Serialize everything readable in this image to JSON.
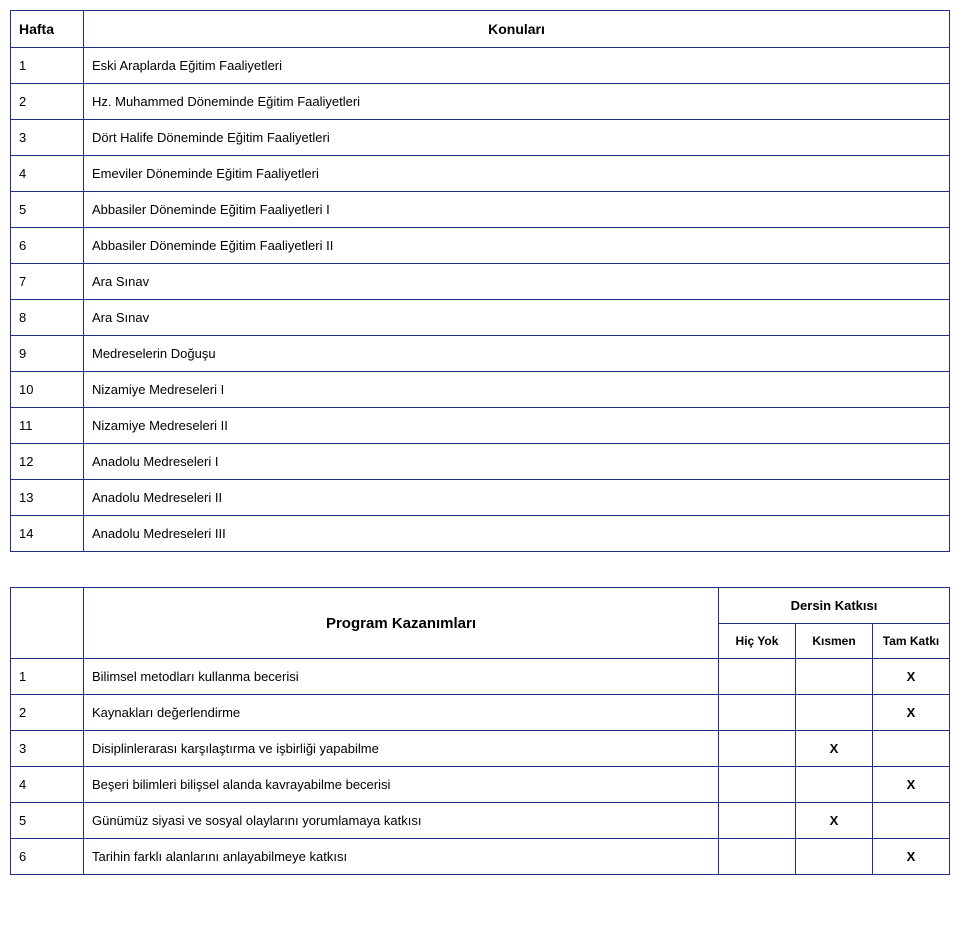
{
  "schedule": {
    "header_week": "Hafta",
    "header_topics": "Konuları",
    "rows": [
      {
        "n": "1",
        "topic": "Eski Araplarda Eğitim Faaliyetleri"
      },
      {
        "n": "2",
        "topic": "Hz. Muhammed Döneminde Eğitim Faaliyetleri"
      },
      {
        "n": "3",
        "topic": "Dört Halife Döneminde Eğitim Faaliyetleri"
      },
      {
        "n": "4",
        "topic": "Emeviler Döneminde Eğitim Faaliyetleri"
      },
      {
        "n": "5",
        "topic": "Abbasiler Döneminde Eğitim Faaliyetleri I"
      },
      {
        "n": "6",
        "topic": "Abbasiler Döneminde Eğitim Faaliyetleri II"
      },
      {
        "n": "7",
        "topic": "Ara Sınav"
      },
      {
        "n": "8",
        "topic": "Ara Sınav"
      },
      {
        "n": "9",
        "topic": "Medreselerin Doğuşu"
      },
      {
        "n": "10",
        "topic": "Nizamiye Medreseleri I"
      },
      {
        "n": "11",
        "topic": "Nizamiye Medreseleri II"
      },
      {
        "n": "12",
        "topic": "Anadolu Medreseleri I"
      },
      {
        "n": "13",
        "topic": "Anadolu Medreseleri II"
      },
      {
        "n": "14",
        "topic": "Anadolu Medreseleri III"
      }
    ]
  },
  "outcomes": {
    "program_header": "Program Kazanımları",
    "contribution_header": "Dersin Katkısı",
    "col_none": "Hiç Yok",
    "col_partial": "Kısmen",
    "col_full": "Tam Katkı",
    "mark": "X",
    "rows": [
      {
        "n": "1",
        "text": "Bilimsel metodları kullanma becerisi",
        "none": "",
        "partial": "",
        "full": "X"
      },
      {
        "n": "2",
        "text": "Kaynakları değerlendirme",
        "none": "",
        "partial": "",
        "full": "X"
      },
      {
        "n": "3",
        "text": "Disiplinlerarası karşılaştırma ve işbirliği yapabilme",
        "none": "",
        "partial": "X",
        "full": ""
      },
      {
        "n": "4",
        "text": "Beşeri bilimleri bilişsel alanda  kavrayabilme becerisi",
        "none": "",
        "partial": "",
        "full": "X"
      },
      {
        "n": "5",
        "text": "Günümüz siyasi ve sosyal olaylarını yorumlamaya katkısı",
        "none": "",
        "partial": "X",
        "full": ""
      },
      {
        "n": "6",
        "text": "Tarihin farklı alanlarını anlayabilmeye katkısı",
        "none": "",
        "partial": "",
        "full": "X"
      }
    ]
  }
}
